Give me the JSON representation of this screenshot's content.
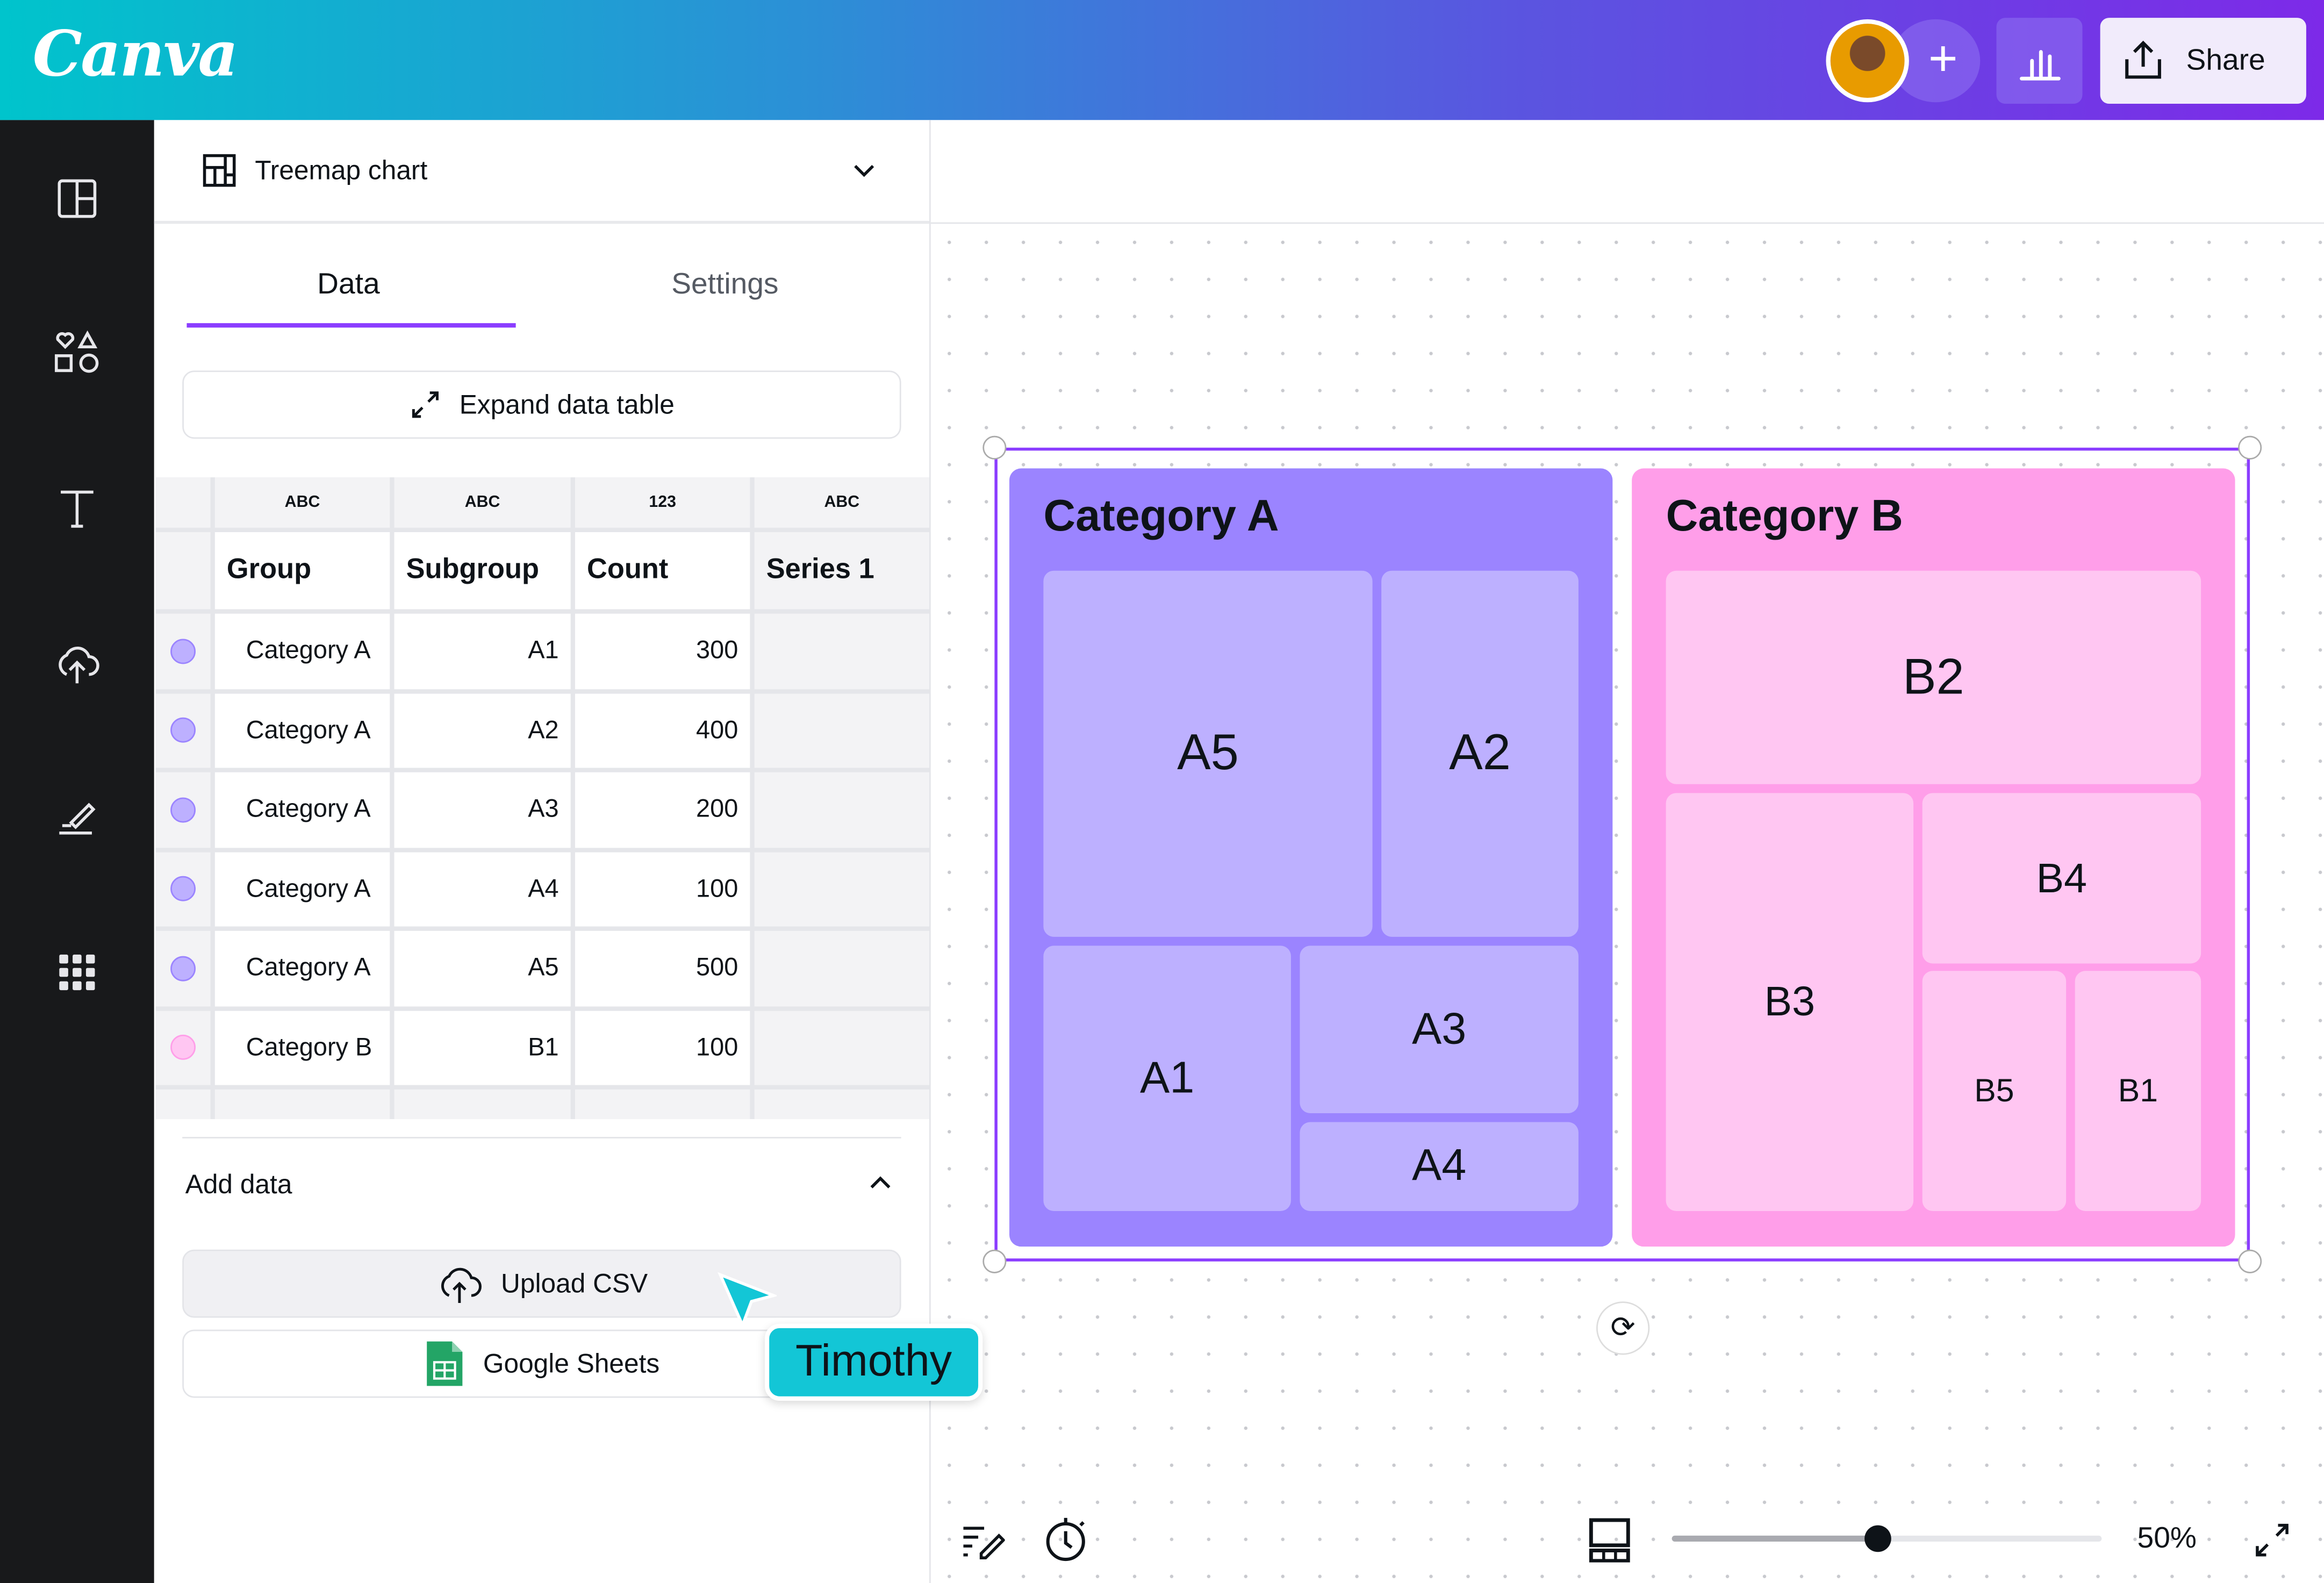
{
  "topbar": {
    "logo": "Canva",
    "share_label": "Share",
    "icons": [
      "add-people-icon",
      "insights-icon",
      "share-icon"
    ]
  },
  "sidebar": {
    "icons": [
      "design-icon",
      "elements-icon",
      "text-icon",
      "uploads-icon",
      "draw-icon",
      "apps-icon"
    ]
  },
  "panel": {
    "chart_type": "Treemap chart",
    "tabs": [
      {
        "label": "Data",
        "active": true
      },
      {
        "label": "Settings",
        "active": false
      }
    ],
    "expand_label": "Expand data table",
    "table": {
      "types": [
        "ABC",
        "ABC",
        "123",
        "ABC"
      ],
      "headers": [
        "Group",
        "Subgroup",
        "Count",
        "Series 1"
      ],
      "rows": [
        {
          "color": "#bdb0ff",
          "group": "Category A",
          "subgroup": "A1",
          "count": "300"
        },
        {
          "color": "#bdb0ff",
          "group": "Category A",
          "subgroup": "A2",
          "count": "400"
        },
        {
          "color": "#bdb0ff",
          "group": "Category A",
          "subgroup": "A3",
          "count": "200"
        },
        {
          "color": "#bdb0ff",
          "group": "Category A",
          "subgroup": "A4",
          "count": "100"
        },
        {
          "color": "#bdb0ff",
          "group": "Category A",
          "subgroup": "A5",
          "count": "500"
        },
        {
          "color": "#ffc6f2",
          "group": "Category B",
          "subgroup": "B1",
          "count": "100"
        }
      ]
    },
    "add_data_label": "Add data",
    "upload_csv_label": "Upload CSV",
    "google_sheets_label": "Google Sheets"
  },
  "cursor": {
    "name": "Timothy",
    "color": "#13c6d6"
  },
  "treemap": {
    "accent": "#8b3dff",
    "categories": [
      {
        "title": "Category A",
        "color": "#9b84ff",
        "tile_color": "#bdb0ff",
        "tiles": [
          "A5",
          "A2",
          "A1",
          "A3",
          "A4"
        ]
      },
      {
        "title": "Category B",
        "color": "#ff9ee9",
        "tile_color": "#ffc6f2",
        "tiles": [
          "B2",
          "B3",
          "B4",
          "B5",
          "B1"
        ]
      }
    ]
  },
  "footer": {
    "zoom_label": "50%",
    "zoom_percent": 50
  }
}
